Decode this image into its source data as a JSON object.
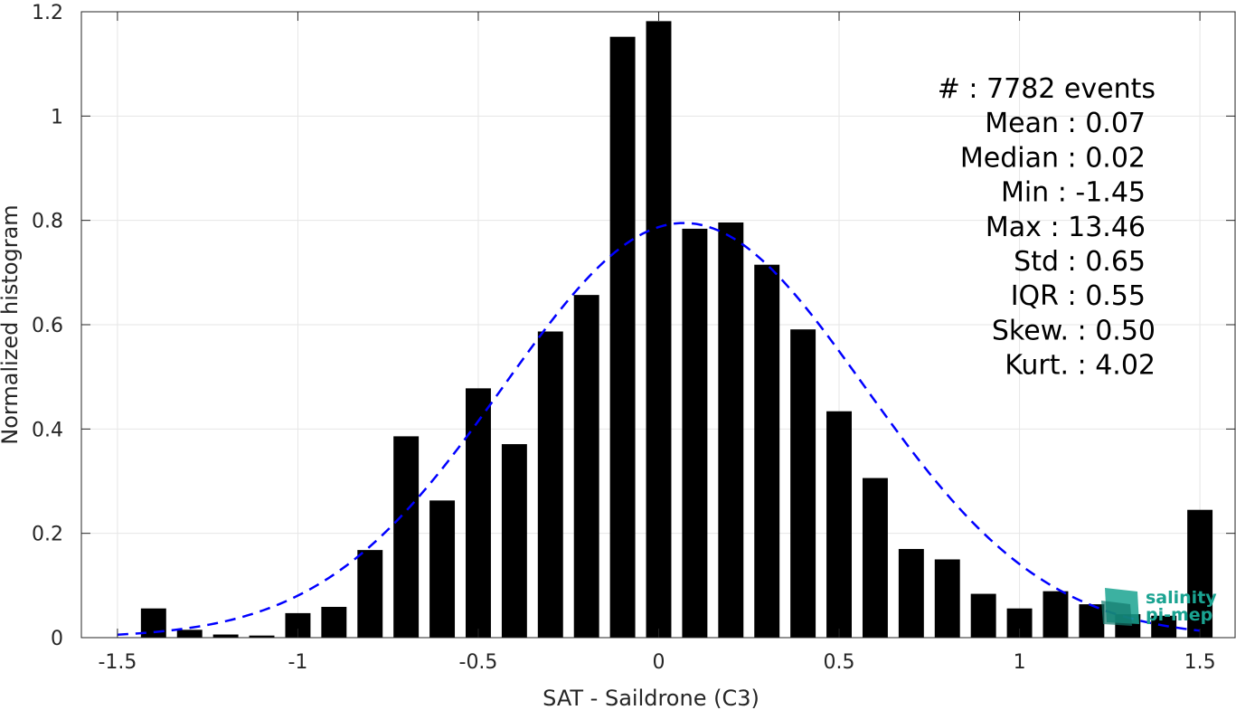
{
  "chart_data": {
    "type": "bar",
    "xlabel": "SAT - Saildrone (C3)",
    "ylabel": "Normalized histogram",
    "xlim": [
      -1.6,
      1.6
    ],
    "ylim": [
      0,
      1.2
    ],
    "xticks": [
      "-1.5",
      "-1",
      "-0.5",
      "0",
      "0.5",
      "1",
      "1.5"
    ],
    "xtick_values": [
      -1.5,
      -1,
      -0.5,
      0,
      0.5,
      1,
      1.5
    ],
    "yticks": [
      "0",
      "0.2",
      "0.4",
      "0.6",
      "0.8",
      "1",
      "1.2"
    ],
    "ytick_values": [
      0,
      0.2,
      0.4,
      0.6,
      0.8,
      1.0,
      1.2
    ],
    "grid": true,
    "bar_width": 0.07,
    "bar_color": "#000000",
    "series": [
      {
        "x": [
          -1.4,
          -1.3,
          -1.2,
          -1.1,
          -1.0,
          -0.9,
          -0.8,
          -0.7,
          -0.6,
          -0.5,
          -0.4,
          -0.3,
          -0.2,
          -0.1,
          0.0,
          0.1,
          0.2,
          0.3,
          0.4,
          0.5,
          0.6,
          0.7,
          0.8,
          0.9,
          1.0,
          1.1,
          1.2,
          1.3,
          1.4,
          1.5
        ],
        "values": [
          0.056,
          0.015,
          0.006,
          0.004,
          0.047,
          0.059,
          0.168,
          0.386,
          0.263,
          0.478,
          0.371,
          0.587,
          0.657,
          1.152,
          1.182,
          0.784,
          0.796,
          0.715,
          0.591,
          0.434,
          0.306,
          0.17,
          0.15,
          0.084,
          0.056,
          0.089,
          0.064,
          0.045,
          0.042,
          0.245
        ]
      }
    ],
    "fit_curve": {
      "type": "normal",
      "mean": 0.07,
      "std": 0.5,
      "peak": 0.795,
      "x_range": [
        -1.5,
        1.5
      ],
      "color": "#0000ff",
      "style": "dashed"
    },
    "stats": [
      "#  : 7782 events",
      "Mean : 0.07",
      "Median : 0.02",
      "Min : -1.45",
      "Max : 13.46",
      "Std : 0.65",
      "IQR : 0.55",
      "Skew. : 0.50",
      "Kurt. : 4.02"
    ],
    "logo": {
      "line1": "salinity",
      "line2": "pi-mep",
      "color": "#1aa391"
    }
  }
}
